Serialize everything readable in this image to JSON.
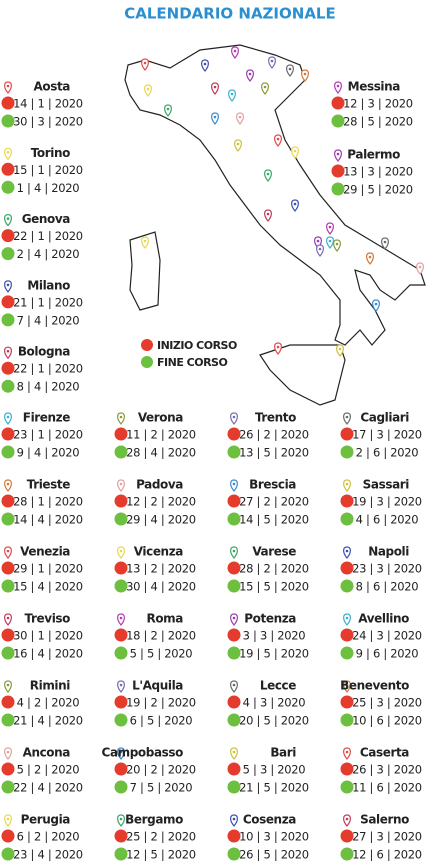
{
  "title": "CALENDARIO NAZIONALE",
  "legend": {
    "start": "INIZIO CORSO",
    "end": "FINE CORSO"
  },
  "cities": [
    {
      "name": "Aosta",
      "start": "14 | 1 | 2020",
      "end": "30 | 3 | 2020"
    },
    {
      "name": "Torino",
      "start": "15 | 1 | 2020",
      "end": "1 | 4 | 2020"
    },
    {
      "name": "Genova",
      "start": "22 | 1 | 2020",
      "end": "2 | 4 | 2020"
    },
    {
      "name": "Milano",
      "start": "21 | 1 | 2020",
      "end": "7 | 4 | 2020"
    },
    {
      "name": "Bologna",
      "start": "22 | 1 | 2020",
      "end": "8 | 4 | 2020"
    },
    {
      "name": "Messina",
      "start": "12 | 3 | 2020",
      "end": "28 | 5 | 2020"
    },
    {
      "name": "Palermo",
      "start": "13 | 3 | 2020",
      "end": "29 | 5 | 2020"
    },
    {
      "name": "Firenze",
      "start": "23 | 1 | 2020",
      "end": "9 | 4 | 2020"
    },
    {
      "name": "Verona",
      "start": "11 | 2 | 2020",
      "end": "28 | 4 | 2020"
    },
    {
      "name": "Trento",
      "start": "26 | 2 | 2020",
      "end": "13 | 5 | 2020"
    },
    {
      "name": "Cagliari",
      "start": "17 | 3 | 2020",
      "end": "2 | 6 | 2020"
    },
    {
      "name": "Trieste",
      "start": "28 | 1 | 2020",
      "end": "14 | 4 | 2020"
    },
    {
      "name": "Padova",
      "start": "12 | 2 | 2020",
      "end": "29 | 4 | 2020"
    },
    {
      "name": "Brescia",
      "start": "27 | 2 | 2020",
      "end": "14 | 5 | 2020"
    },
    {
      "name": "Sassari",
      "start": "19 | 3 | 2020",
      "end": "4 | 6 | 2020"
    },
    {
      "name": "Venezia",
      "start": "29 | 1 | 2020",
      "end": "15 | 4 | 2020"
    },
    {
      "name": "Vicenza",
      "start": "13 | 2 | 2020",
      "end": "30 | 4 | 2020"
    },
    {
      "name": "Varese",
      "start": "28 | 2 | 2020",
      "end": "15 | 5 | 2020"
    },
    {
      "name": "Napoli",
      "start": "23 | 3 | 2020",
      "end": "8 | 6 | 2020"
    },
    {
      "name": "Treviso",
      "start": "30 | 1 | 2020",
      "end": "16 | 4 | 2020"
    },
    {
      "name": "Roma",
      "start": "18 | 2 | 2020",
      "end": "5 | 5 | 2020"
    },
    {
      "name": "Potenza",
      "start": "3 | 3 | 2020",
      "end": "19 | 5 | 2020"
    },
    {
      "name": "Avellino",
      "start": "24 | 3 | 2020",
      "end": "9 | 6 | 2020"
    },
    {
      "name": "Rimini",
      "start": "4 | 2 | 2020",
      "end": "21 | 4 | 2020"
    },
    {
      "name": "L'Aquila",
      "start": "19 | 2 | 2020",
      "end": "6 | 5 | 2020"
    },
    {
      "name": "Lecce",
      "start": "4 | 3 | 2020",
      "end": "20 | 5 | 2020"
    },
    {
      "name": "Benevento",
      "start": "25 | 3 | 2020",
      "end": "10 | 6 | 2020"
    },
    {
      "name": "Ancona",
      "start": "5 | 2 | 2020",
      "end": "22 | 4 | 2020"
    },
    {
      "name": "Campobasso",
      "start": "20 | 2 | 2020",
      "end": "7 | 5 | 2020"
    },
    {
      "name": "Bari",
      "start": "5 | 3 | 2020",
      "end": "21 | 5 | 2020"
    },
    {
      "name": "Caserta",
      "start": "26 | 3 | 2020",
      "end": "11 | 6 | 2020"
    },
    {
      "name": "Perugia",
      "start": "6 | 2 | 2020",
      "end": "23 | 4 | 2020"
    },
    {
      "name": "Bergamo",
      "start": "25 | 2 | 2020",
      "end": "12 | 5 | 2020"
    },
    {
      "name": "Cosenza",
      "start": "10 | 3 | 2020",
      "end": "26 | 5 | 2020"
    },
    {
      "name": "Salerno",
      "start": "27 | 3 | 2020",
      "end": "12 | 6 | 2020"
    }
  ]
}
